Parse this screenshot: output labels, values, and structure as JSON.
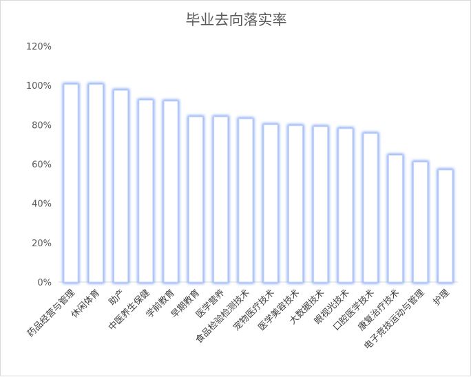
{
  "chart_data": {
    "type": "bar",
    "title": "毕业去向落实率",
    "xlabel": "",
    "ylabel": "",
    "categories": [
      "药品经营与管理",
      "休闲体育",
      "助产",
      "中医养生保健",
      "学前教育",
      "早期教育",
      "医学营养",
      "食品检验检测技术",
      "宠物医疗技术",
      "医学美容技术",
      "大数据技术",
      "眼视光技术",
      "口腔医学技术",
      "康复治疗技术",
      "电子竞技运动与管理",
      "护理"
    ],
    "values": [
      100.5,
      100.5,
      97.5,
      92.5,
      92,
      84,
      84,
      83,
      80,
      79.5,
      79,
      78,
      75.5,
      64.5,
      61,
      57
    ],
    "ylim": [
      0,
      120
    ],
    "yticks": [
      "0%",
      "20%",
      "40%",
      "60%",
      "80%",
      "100%",
      "120%"
    ],
    "ytick_values": [
      0,
      20,
      40,
      60,
      80,
      100,
      120
    ],
    "grid": false,
    "bar_fill": "#ffffff",
    "bar_glow": "#6f97f2",
    "axis_color": "#d9d9d9"
  }
}
